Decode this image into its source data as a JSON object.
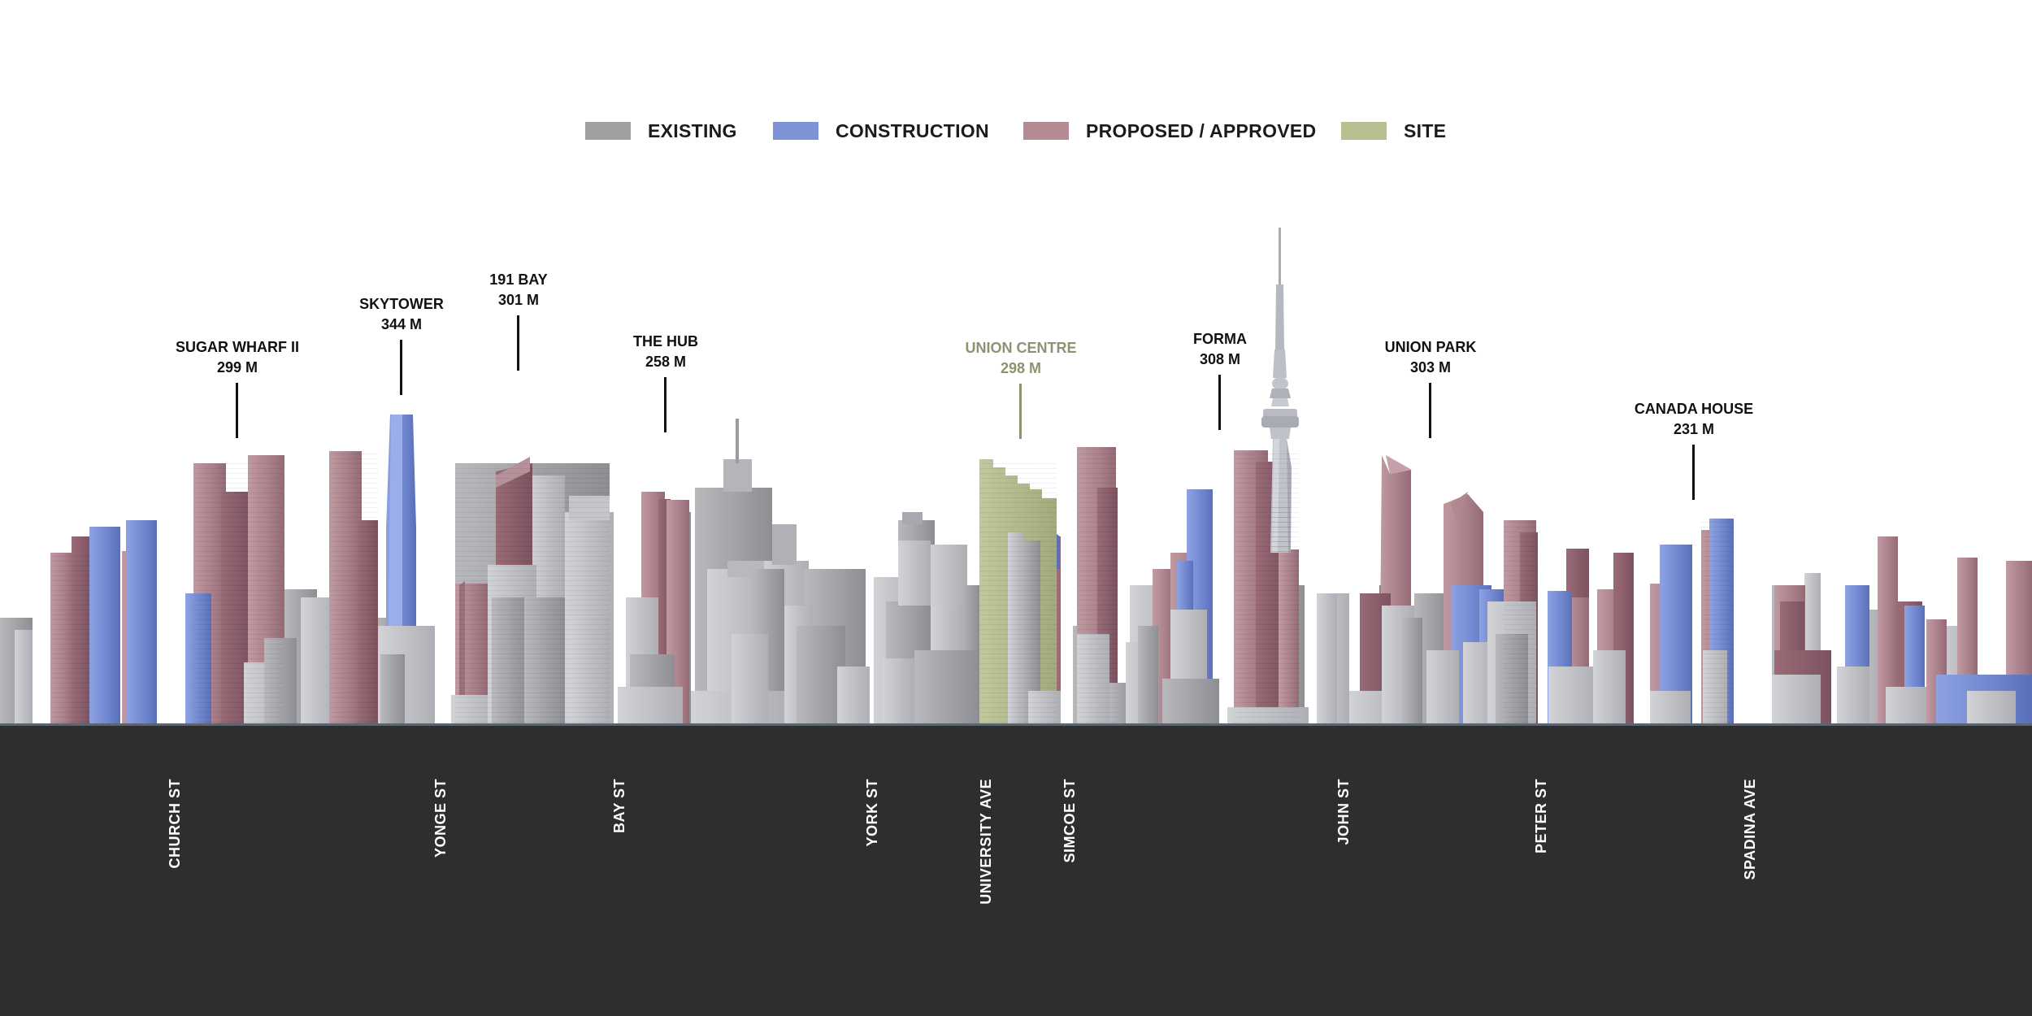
{
  "legend": {
    "existing": "EXISTING",
    "construction": "CONSTRUCTION",
    "proposed": "PROPOSED / APPROVED",
    "site": "SITE"
  },
  "colors": {
    "existing": "#a0a0a2",
    "construction": "#7e93d6",
    "proposed": "#b48a93",
    "site": "#b7bf90",
    "ground": "#2e2e2e"
  },
  "towers": [
    {
      "name": "SUGAR WHARF II",
      "height": "299 M",
      "status": "proposed"
    },
    {
      "name": "SKYTOWER",
      "height": "344 M",
      "status": "construction"
    },
    {
      "name": "191 BAY",
      "height": "301 M",
      "status": "proposed"
    },
    {
      "name": "THE HUB",
      "height": "258 M",
      "status": "proposed"
    },
    {
      "name": "UNION CENTRE",
      "height": "298 M",
      "status": "site"
    },
    {
      "name": "FORMA",
      "height": "308 M",
      "status": "proposed"
    },
    {
      "name": "UNION PARK",
      "height": "303 M",
      "status": "proposed"
    },
    {
      "name": "CANADA HOUSE",
      "height": "231 M",
      "status": "proposed"
    }
  ],
  "streets": [
    "CHURCH ST",
    "YONGE ST",
    "BAY ST",
    "YORK ST",
    "UNIVERSITY  AVE",
    "SIMCOE ST",
    "JOHN ST",
    "PETER ST",
    "SPADINA AVE"
  ]
}
